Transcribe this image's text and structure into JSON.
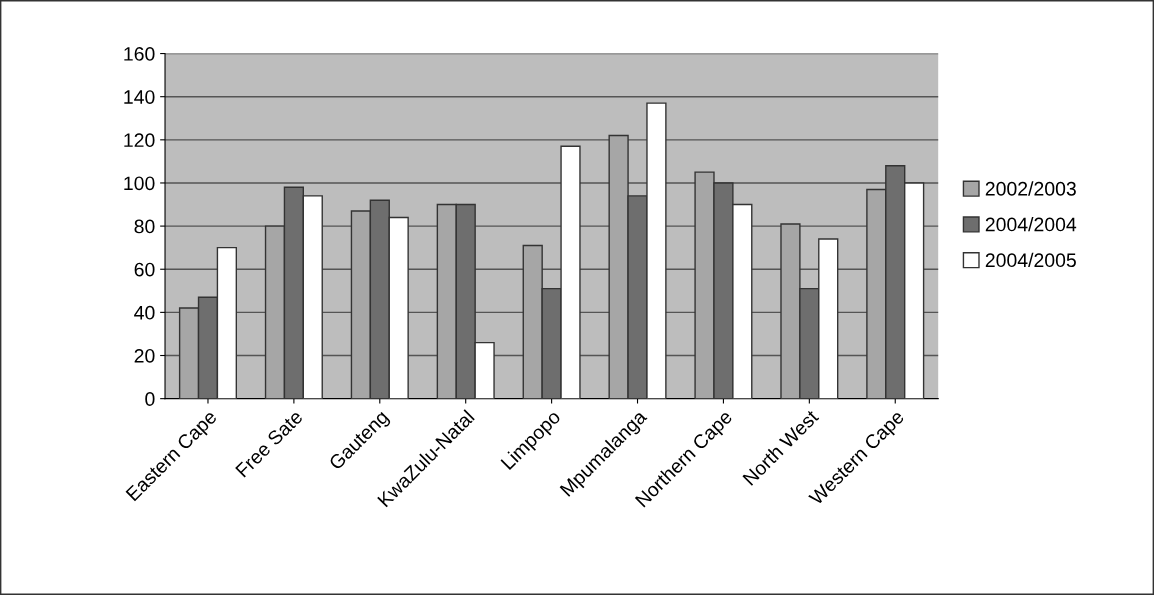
{
  "chart_data": {
    "type": "bar",
    "categories": [
      "Eastern Cape",
      "Free Sate",
      "Gauteng",
      "KwaZulu-Natal",
      "Limpopo",
      "Mpumalanga",
      "Northern Cape",
      "North West",
      "Western Cape"
    ],
    "series": [
      {
        "name": "2002/2003",
        "color": "#a6a6a6",
        "values": [
          42,
          80,
          87,
          90,
          71,
          122,
          105,
          81,
          97
        ]
      },
      {
        "name": "2004/2004",
        "color": "#6e6e6e",
        "values": [
          47,
          98,
          92,
          90,
          51,
          94,
          100,
          51,
          108
        ]
      },
      {
        "name": "2004/2005",
        "color": "#ffffff",
        "values": [
          70,
          94,
          84,
          26,
          117,
          137,
          90,
          74,
          100
        ]
      }
    ],
    "ylim": [
      0,
      160
    ],
    "yticks": [
      0,
      20,
      40,
      60,
      80,
      100,
      120,
      140,
      160
    ],
    "grid": "y",
    "legend": "right"
  }
}
